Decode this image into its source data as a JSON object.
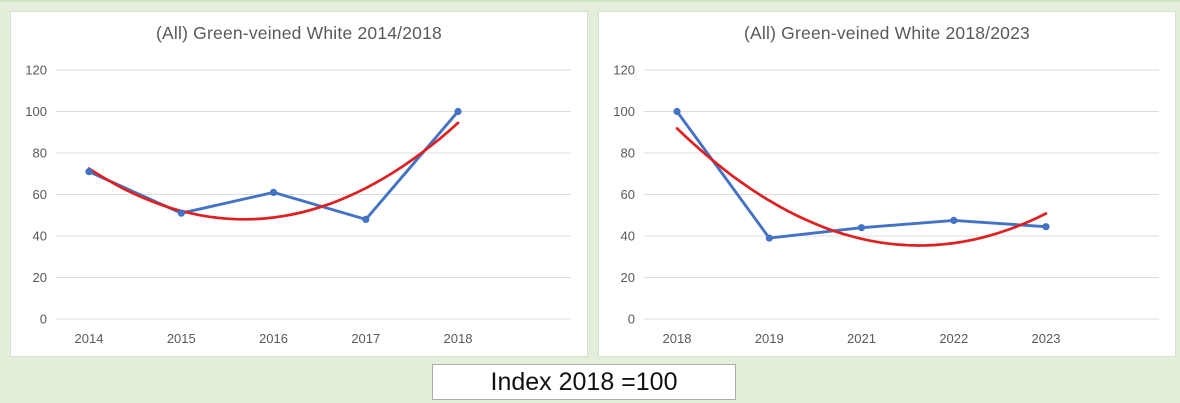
{
  "page": {
    "background_color": "#e3efdb",
    "top_border_color": "#cfe4c1",
    "panel_border_color": "#d6ddd3",
    "gridline_color": "#dcdcdc",
    "axis_text_color": "#595959"
  },
  "footer": {
    "label": "Index 2018 =100"
  },
  "chart_data": [
    {
      "type": "line",
      "title": "(All) Green-veined White 2014/2018",
      "categories": [
        "2014",
        "2015",
        "2016",
        "2017",
        "2018"
      ],
      "series": [
        {
          "name": "abundance-index",
          "color": "#4472c4",
          "marker": "circle",
          "values": [
            71,
            51,
            61,
            48,
            100
          ]
        },
        {
          "name": "polynomial-trendline-order-2",
          "color": "#e02020",
          "fit": "poly2",
          "values": [
            72.5,
            52.1,
            48.9,
            63.1,
            94.5
          ]
        }
      ],
      "xlabel": "",
      "ylabel": "",
      "ylim": [
        0,
        120
      ],
      "yticks": [
        0,
        20,
        40,
        60,
        80,
        100,
        120
      ],
      "grid": true,
      "legend": "none"
    },
    {
      "type": "line",
      "title": "(All) Green-veined White 2018/2023",
      "categories": [
        "2018",
        "2019",
        "2021",
        "2022",
        "2023"
      ],
      "series": [
        {
          "name": "abundance-index",
          "color": "#4472c4",
          "marker": "circle",
          "values": [
            100,
            39,
            44,
            47.5,
            44.5
          ]
        },
        {
          "name": "polynomial-trendline-order-2",
          "color": "#e02020",
          "fit": "poly2",
          "values": [
            91.9,
            57.1,
            38.6,
            36.6,
            50.9
          ]
        }
      ],
      "xlabel": "",
      "ylabel": "",
      "ylim": [
        0,
        120
      ],
      "yticks": [
        0,
        20,
        40,
        60,
        80,
        100,
        120
      ],
      "grid": true,
      "legend": "none"
    }
  ]
}
